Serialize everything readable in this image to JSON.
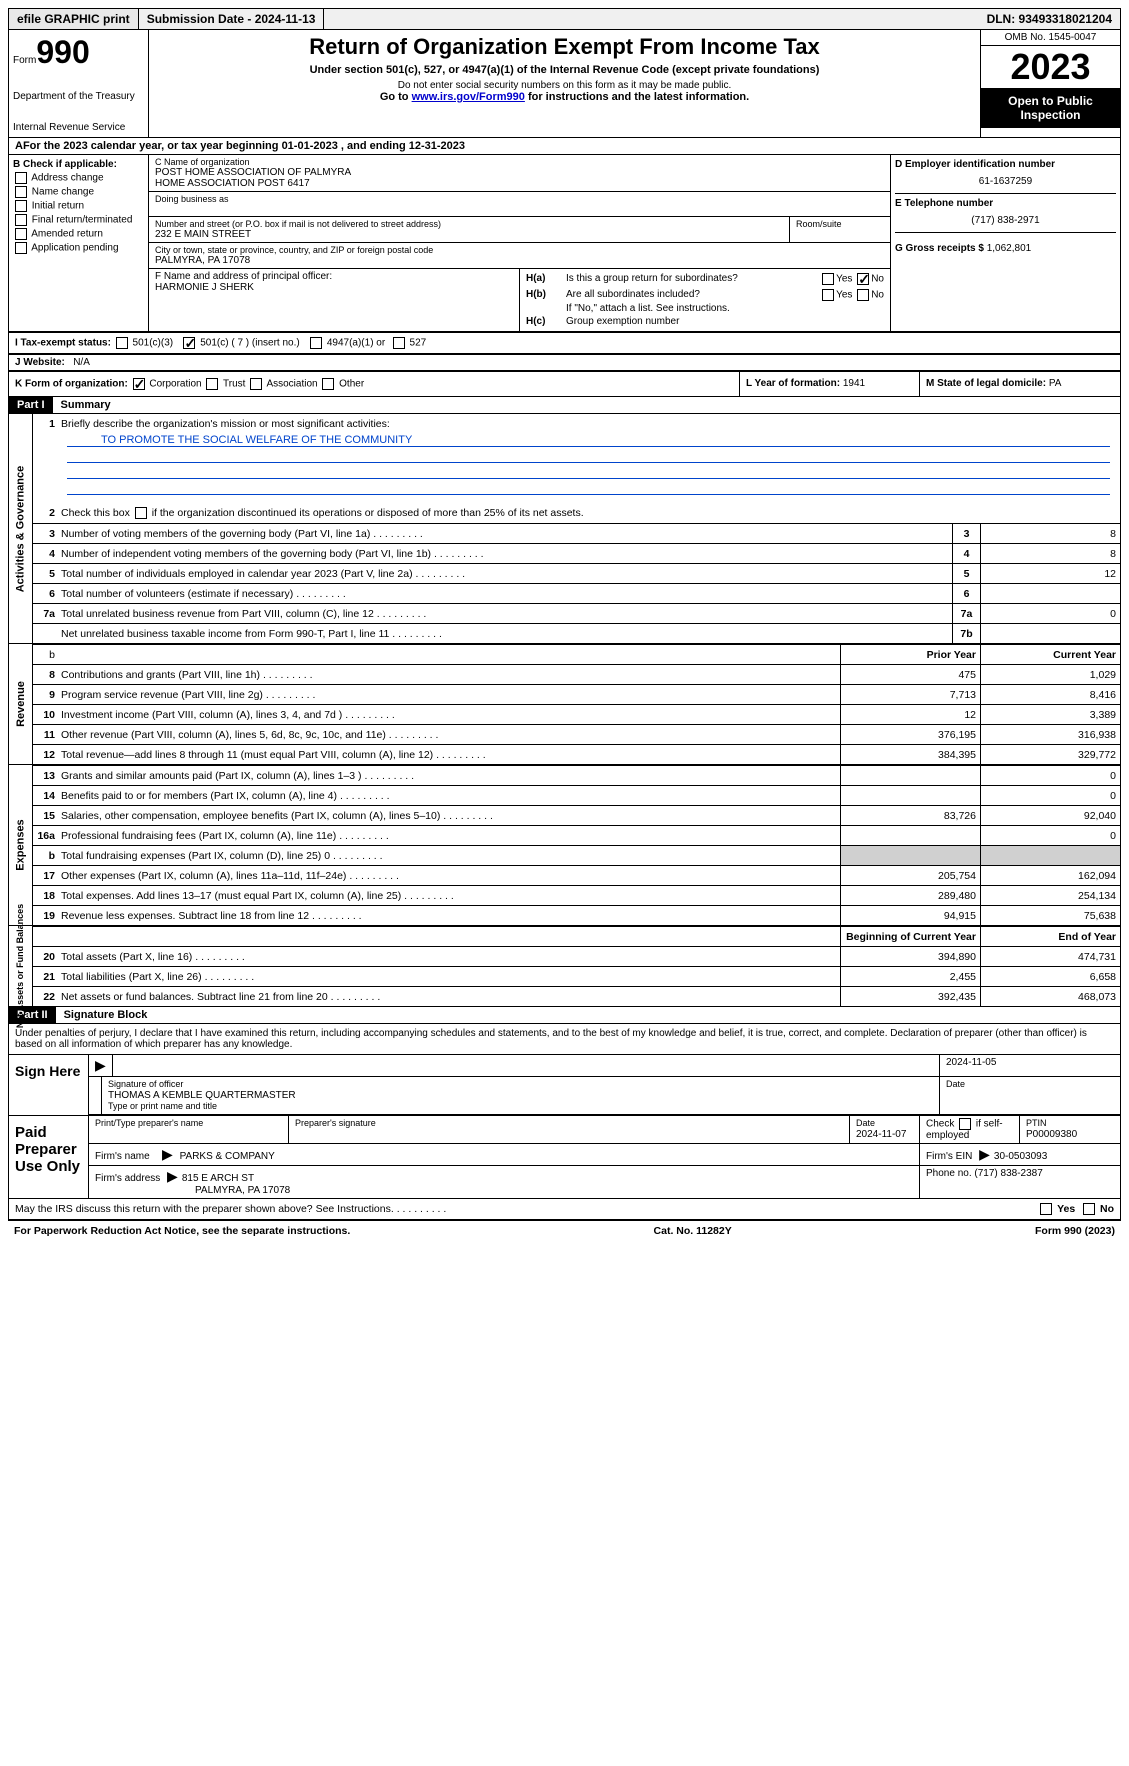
{
  "top": {
    "efile": "efile GRAPHIC print",
    "submission": "Submission Date - 2024-11-13",
    "dln": "DLN: 93493318021204"
  },
  "header": {
    "form_prefix": "Form",
    "form_number": "990",
    "title": "Return of Organization Exempt From Income Tax",
    "subtitle": "Under section 501(c), 527, or 4947(a)(1) of the Internal Revenue Code (except private foundations)",
    "note": "Do not enter social security numbers on this form as it may be made public.",
    "goto_pre": "Go to ",
    "goto_link": "www.irs.gov/Form990",
    "goto_post": " for instructions and the latest information.",
    "dept": "Department of the Treasury",
    "irs": "Internal Revenue Service",
    "omb": "OMB No. 1545-0047",
    "year": "2023",
    "open": "Open to Public Inspection"
  },
  "period": {
    "text_pre": "For the 2023 calendar year, or tax year beginning ",
    "begin": "01-01-2023",
    "mid": "   , and ending ",
    "end": "12-31-2023"
  },
  "box_b": {
    "title": "B Check if applicable:",
    "opts": [
      "Address change",
      "Name change",
      "Initial return",
      "Final return/terminated",
      "Amended return",
      "Application pending"
    ]
  },
  "box_c": {
    "name_label": "C Name of organization",
    "name1": "POST HOME ASSOCIATION OF PALMYRA",
    "name2": "HOME ASSOCIATION POST 6417",
    "dba_label": "Doing business as",
    "addr_label": "Number and street (or P.O. box if mail is not delivered to street address)",
    "room_label": "Room/suite",
    "addr": "232 E MAIN STREET",
    "city_label": "City or town, state or province, country, and ZIP or foreign postal code",
    "city": "PALMYRA, PA  17078",
    "officer_label": "F  Name and address of principal officer:",
    "officer": "HARMONIE J SHERK"
  },
  "box_d": {
    "ein_label": "D Employer identification number",
    "ein": "61-1637259",
    "phone_label": "E Telephone number",
    "phone": "(717) 838-2971",
    "receipts_label": "G Gross receipts $ ",
    "receipts": "1,062,801"
  },
  "box_h": {
    "ha_label": "Is this a group return for subordinates?",
    "hb_label": "Are all subordinates included?",
    "hb_note": "If \"No,\" attach a list. See instructions.",
    "hc_label": "Group exemption number",
    "yes": "Yes",
    "no": "No"
  },
  "tax_status": {
    "label": "I   Tax-exempt status:",
    "opt1": "501(c)(3)",
    "opt2": "501(c) ( 7 ) (insert no.)",
    "opt3": "4947(a)(1) or",
    "opt4": "527"
  },
  "website": {
    "label": "J   Website:",
    "value": "N/A"
  },
  "box_k": {
    "label": "K Form of organization:",
    "opts": [
      "Corporation",
      "Trust",
      "Association",
      "Other"
    ],
    "year_label": "L Year of formation: ",
    "year": "1941",
    "state_label": "M State of legal domicile: ",
    "state": "PA"
  },
  "part1": {
    "hdr": "Part I",
    "title": "Summary",
    "sections": {
      "gov": "Activities & Governance",
      "rev": "Revenue",
      "exp": "Expenses",
      "net": "Net Assets or Fund Balances"
    },
    "q1": "Briefly describe the organization's mission or most significant activities:",
    "mission": "TO PROMOTE THE SOCIAL WELFARE OF THE COMMUNITY",
    "q2": "Check this box       if the organization discontinued its operations or disposed of more than 25% of its net assets.",
    "rows": [
      {
        "n": "3",
        "t": "Number of voting members of the governing body (Part VI, line 1a)",
        "box": "3",
        "v": "8"
      },
      {
        "n": "4",
        "t": "Number of independent voting members of the governing body (Part VI, line 1b)",
        "box": "4",
        "v": "8"
      },
      {
        "n": "5",
        "t": "Total number of individuals employed in calendar year 2023 (Part V, line 2a)",
        "box": "5",
        "v": "12"
      },
      {
        "n": "6",
        "t": "Total number of volunteers (estimate if necessary)",
        "box": "6",
        "v": ""
      },
      {
        "n": "7a",
        "t": "Total unrelated business revenue from Part VIII, column (C), line 12",
        "box": "7a",
        "v": "0"
      },
      {
        "n": "",
        "t": "Net unrelated business taxable income from Form 990-T, Part I, line 11",
        "box": "7b",
        "v": ""
      }
    ],
    "col_hdrs": {
      "prior": "Prior Year",
      "current": "Current Year",
      "begin": "Beginning of Current Year",
      "end": "End of Year"
    },
    "rev_rows": [
      {
        "n": "8",
        "t": "Contributions and grants (Part VIII, line 1h)",
        "p": "475",
        "c": "1,029"
      },
      {
        "n": "9",
        "t": "Program service revenue (Part VIII, line 2g)",
        "p": "7,713",
        "c": "8,416"
      },
      {
        "n": "10",
        "t": "Investment income (Part VIII, column (A), lines 3, 4, and 7d )",
        "p": "12",
        "c": "3,389"
      },
      {
        "n": "11",
        "t": "Other revenue (Part VIII, column (A), lines 5, 6d, 8c, 9c, 10c, and 11e)",
        "p": "376,195",
        "c": "316,938"
      },
      {
        "n": "12",
        "t": "Total revenue—add lines 8 through 11 (must equal Part VIII, column (A), line 12)",
        "p": "384,395",
        "c": "329,772"
      }
    ],
    "exp_rows": [
      {
        "n": "13",
        "t": "Grants and similar amounts paid (Part IX, column (A), lines 1–3 )",
        "p": "",
        "c": "0"
      },
      {
        "n": "14",
        "t": "Benefits paid to or for members (Part IX, column (A), line 4)",
        "p": "",
        "c": "0"
      },
      {
        "n": "15",
        "t": "Salaries, other compensation, employee benefits (Part IX, column (A), lines 5–10)",
        "p": "83,726",
        "c": "92,040"
      },
      {
        "n": "16a",
        "t": "Professional fundraising fees (Part IX, column (A), line 11e)",
        "p": "",
        "c": "0"
      },
      {
        "n": "b",
        "t": "Total fundraising expenses (Part IX, column (D), line 25) 0",
        "p": "grey",
        "c": "grey"
      },
      {
        "n": "17",
        "t": "Other expenses (Part IX, column (A), lines 11a–11d, 11f–24e)",
        "p": "205,754",
        "c": "162,094"
      },
      {
        "n": "18",
        "t": "Total expenses. Add lines 13–17 (must equal Part IX, column (A), line 25)",
        "p": "289,480",
        "c": "254,134"
      },
      {
        "n": "19",
        "t": "Revenue less expenses. Subtract line 18 from line 12",
        "p": "94,915",
        "c": "75,638"
      }
    ],
    "net_rows": [
      {
        "n": "20",
        "t": "Total assets (Part X, line 16)",
        "p": "394,890",
        "c": "474,731"
      },
      {
        "n": "21",
        "t": "Total liabilities (Part X, line 26)",
        "p": "2,455",
        "c": "6,658"
      },
      {
        "n": "22",
        "t": "Net assets or fund balances. Subtract line 21 from line 20",
        "p": "392,435",
        "c": "468,073"
      }
    ]
  },
  "part2": {
    "hdr": "Part II",
    "title": "Signature Block",
    "decl": "Under penalties of perjury, I declare that I have examined this return, including accompanying schedules and statements, and to the best of my knowledge and belief, it is true, correct, and complete. Declaration of preparer (other than officer) is based on all information of which preparer has any knowledge.",
    "sign_here": "Sign Here",
    "sig_label": "Signature of officer",
    "officer_name": "THOMAS A KEMBLE QUARTERMASTER",
    "type_label": "Type or print name and title",
    "date_label": "Date",
    "date1": "2024-11-05",
    "paid": "Paid Preparer Use Only",
    "prep_name_label": "Print/Type preparer's name",
    "prep_sig_label": "Preparer's signature",
    "prep_date_label": "Date",
    "prep_date": "2024-11-07",
    "check_label": "Check       if self-employed",
    "ptin_label": "PTIN",
    "ptin": "P00009380",
    "firm_name_label": "Firm's name",
    "firm_name": "PARKS & COMPANY",
    "firm_ein_label": "Firm's EIN",
    "firm_ein": "30-0503093",
    "firm_addr_label": "Firm's address",
    "firm_addr1": "815 E ARCH ST",
    "firm_addr2": "PALMYRA, PA  17078",
    "firm_phone_label": "Phone no.",
    "firm_phone": "(717) 838-2387",
    "discuss": "May the IRS discuss this return with the preparer shown above? See Instructions.",
    "yes": "Yes",
    "no": "No"
  },
  "footer": {
    "paperwork": "For Paperwork Reduction Act Notice, see the separate instructions.",
    "cat": "Cat. No. 11282Y",
    "form": "Form 990 (2023)"
  }
}
